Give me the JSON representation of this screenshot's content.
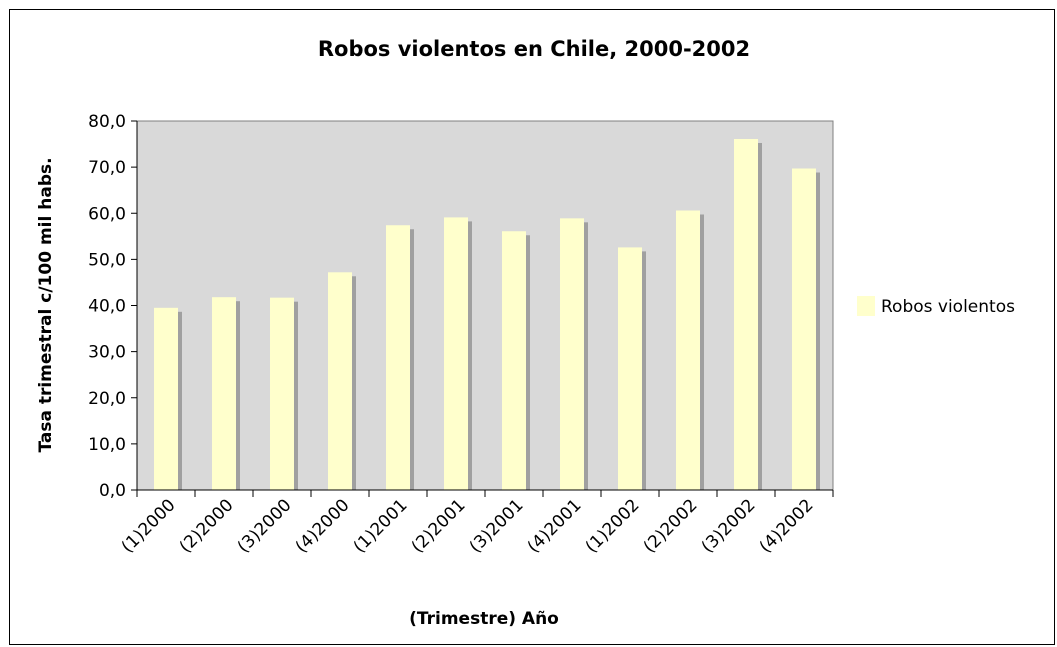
{
  "chart_data": {
    "type": "bar",
    "title": "Robos violentos en Chile, 2000-2002",
    "xlabel": "(Trimestre) Año",
    "ylabel": "Tasa trimestral c/100 mil habs.",
    "categories": [
      "(1)2000",
      "(2)2000",
      "(3)2000",
      "(4)2000",
      "(1)2001",
      "(2)2001",
      "(3)2001",
      "(4)2001",
      "(1)2002",
      "(2)2002",
      "(3)2002",
      "(4)2002"
    ],
    "series": [
      {
        "name": "Robos violentos",
        "values": [
          39.5,
          41.8,
          41.7,
          47.2,
          57.4,
          59.1,
          56.1,
          58.9,
          52.6,
          60.6,
          76.1,
          69.7
        ]
      }
    ],
    "ylim": [
      0,
      80
    ],
    "yticks": [
      "0,0",
      "10,0",
      "20,0",
      "30,0",
      "40,0",
      "50,0",
      "60,0",
      "70,0",
      "80,0"
    ],
    "grid": false,
    "legend_position": "right",
    "colors": {
      "bar": "#ffffcc",
      "shadow": "#a0a0a0",
      "plot_bg": "#d9d9d9"
    }
  }
}
